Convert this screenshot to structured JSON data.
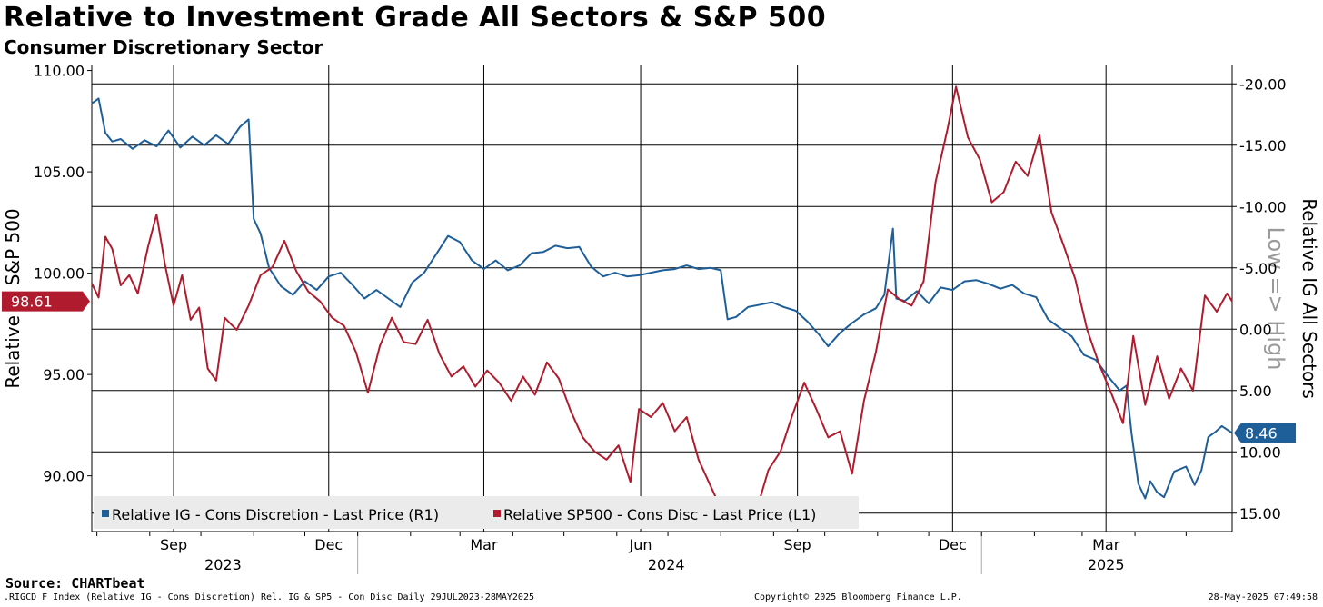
{
  "title": "Relative to Investment Grade All Sectors & S&P 500",
  "subtitle": "Consumer Discretionary Sector",
  "source": "Source: CHARTbeat",
  "footer": {
    "left": ".RIGCD F Index (Relative IG - Cons Discretion) Rel. IG & SP5 - Con Disc  Daily 29JUL2023-28MAY2025",
    "middle": "Copyright© 2025 Bloomberg Finance L.P.",
    "right": "28-May-2025 07:49:58"
  },
  "annotation": "Low => High",
  "chart_data": {
    "type": "line",
    "x_range": [
      "2023-07-29",
      "2025-05-28"
    ],
    "month_ticks": [
      "Sep",
      "Dec",
      "Mar",
      "Jun",
      "Sep",
      "Dec",
      "Mar"
    ],
    "month_tick_dates": [
      "2023-09-15",
      "2023-12-15",
      "2024-03-15",
      "2024-06-15",
      "2024-09-15",
      "2024-12-15",
      "2025-03-15"
    ],
    "year_ticks": [
      "2023",
      "2024",
      "2025"
    ],
    "year_tick_dates": [
      "2023-10-14",
      "2024-06-30",
      "2025-03-15"
    ],
    "left_axis": {
      "label": "Relative to S&P 500",
      "min": 87.25,
      "max": 110.25,
      "ticks": [
        110,
        105,
        100,
        95,
        90
      ],
      "tick_labels": [
        "110.00",
        "105.00",
        "100.00",
        "95.00",
        "90.00"
      ]
    },
    "right_axis": {
      "label": "Relative IG All Sectors",
      "inverted": true,
      "min": -21.5,
      "max": 16.5,
      "ticks": [
        -20,
        -15,
        -10,
        -5,
        0,
        5,
        10,
        15
      ],
      "tick_labels": [
        "-20.00",
        "-15.00",
        "-10.00",
        "-5.00",
        "0.00",
        "5.00",
        "10.00",
        "15.00"
      ]
    },
    "grid": true,
    "legend_position": "bottom-left",
    "series": [
      {
        "name": "Relative IG - Cons Discretion - Last Price (R1)",
        "axis": "right",
        "color": "#1f5f99",
        "last_value": "8.46",
        "points": [
          [
            "2023-07-29",
            -18.4
          ],
          [
            "2023-08-02",
            -18.8
          ],
          [
            "2023-08-06",
            -16.0
          ],
          [
            "2023-08-10",
            -15.3
          ],
          [
            "2023-08-15",
            -15.5
          ],
          [
            "2023-08-22",
            -14.7
          ],
          [
            "2023-08-29",
            -15.4
          ],
          [
            "2023-09-05",
            -14.9
          ],
          [
            "2023-09-12",
            -16.2
          ],
          [
            "2023-09-19",
            -14.8
          ],
          [
            "2023-09-26",
            -15.7
          ],
          [
            "2023-10-03",
            -15.0
          ],
          [
            "2023-10-10",
            -15.8
          ],
          [
            "2023-10-17",
            -15.1
          ],
          [
            "2023-10-24",
            -16.5
          ],
          [
            "2023-10-29",
            -17.1
          ],
          [
            "2023-11-01",
            -9.0
          ],
          [
            "2023-11-05",
            -7.8
          ],
          [
            "2023-11-10",
            -5.0
          ],
          [
            "2023-11-17",
            -3.5
          ],
          [
            "2023-11-24",
            -2.8
          ],
          [
            "2023-12-01",
            -3.9
          ],
          [
            "2023-12-08",
            -3.2
          ],
          [
            "2023-12-15",
            -4.3
          ],
          [
            "2023-12-22",
            -4.6
          ],
          [
            "2023-12-29",
            -3.6
          ],
          [
            "2024-01-05",
            -2.5
          ],
          [
            "2024-01-12",
            -3.2
          ],
          [
            "2024-01-19",
            -2.5
          ],
          [
            "2024-01-26",
            -1.8
          ],
          [
            "2024-02-02",
            -3.8
          ],
          [
            "2024-02-09",
            -4.6
          ],
          [
            "2024-02-16",
            -6.1
          ],
          [
            "2024-02-23",
            -7.6
          ],
          [
            "2024-03-01",
            -7.1
          ],
          [
            "2024-03-08",
            -5.6
          ],
          [
            "2024-03-15",
            -4.9
          ],
          [
            "2024-03-22",
            -5.6
          ],
          [
            "2024-03-29",
            -4.8
          ],
          [
            "2024-04-05",
            -5.2
          ],
          [
            "2024-04-12",
            -6.2
          ],
          [
            "2024-04-19",
            -6.3
          ],
          [
            "2024-04-26",
            -6.8
          ],
          [
            "2024-05-03",
            -6.6
          ],
          [
            "2024-05-10",
            -6.7
          ],
          [
            "2024-05-17",
            -5.1
          ],
          [
            "2024-05-24",
            -4.3
          ],
          [
            "2024-05-31",
            -4.6
          ],
          [
            "2024-06-07",
            -4.3
          ],
          [
            "2024-06-14",
            -4.4
          ],
          [
            "2024-06-21",
            -4.6
          ],
          [
            "2024-06-28",
            -4.8
          ],
          [
            "2024-07-05",
            -4.9
          ],
          [
            "2024-07-12",
            -5.2
          ],
          [
            "2024-07-19",
            -4.9
          ],
          [
            "2024-07-26",
            -5.0
          ],
          [
            "2024-08-01",
            -4.8
          ],
          [
            "2024-08-05",
            -0.8
          ],
          [
            "2024-08-10",
            -1.0
          ],
          [
            "2024-08-17",
            -1.8
          ],
          [
            "2024-08-24",
            -2.0
          ],
          [
            "2024-08-31",
            -2.2
          ],
          [
            "2024-09-07",
            -1.8
          ],
          [
            "2024-09-14",
            -1.5
          ],
          [
            "2024-09-21",
            -0.6
          ],
          [
            "2024-09-28",
            0.5
          ],
          [
            "2024-10-03",
            1.4
          ],
          [
            "2024-10-10",
            0.3
          ],
          [
            "2024-10-17",
            -0.5
          ],
          [
            "2024-10-24",
            -1.2
          ],
          [
            "2024-10-31",
            -1.7
          ],
          [
            "2024-11-05",
            -2.8
          ],
          [
            "2024-11-10",
            -8.2
          ],
          [
            "2024-11-12",
            -2.5
          ],
          [
            "2024-11-17",
            -2.3
          ],
          [
            "2024-11-24",
            -3.1
          ],
          [
            "2024-12-01",
            -2.1
          ],
          [
            "2024-12-08",
            -3.4
          ],
          [
            "2024-12-15",
            -3.2
          ],
          [
            "2024-12-22",
            -3.9
          ],
          [
            "2024-12-29",
            -4.0
          ],
          [
            "2025-01-05",
            -3.7
          ],
          [
            "2025-01-12",
            -3.3
          ],
          [
            "2025-01-19",
            -3.6
          ],
          [
            "2025-01-26",
            -2.9
          ],
          [
            "2025-02-02",
            -2.6
          ],
          [
            "2025-02-09",
            -0.8
          ],
          [
            "2025-02-16",
            -0.1
          ],
          [
            "2025-02-23",
            0.6
          ],
          [
            "2025-03-02",
            2.1
          ],
          [
            "2025-03-09",
            2.5
          ],
          [
            "2025-03-16",
            3.8
          ],
          [
            "2025-03-23",
            5.0
          ],
          [
            "2025-03-27",
            4.6
          ],
          [
            "2025-03-30",
            8.5
          ],
          [
            "2025-04-03",
            12.6
          ],
          [
            "2025-04-07",
            13.8
          ],
          [
            "2025-04-10",
            12.4
          ],
          [
            "2025-04-14",
            13.3
          ],
          [
            "2025-04-18",
            13.7
          ],
          [
            "2025-04-24",
            11.6
          ],
          [
            "2025-05-01",
            11.2
          ],
          [
            "2025-05-06",
            12.7
          ],
          [
            "2025-05-10",
            11.5
          ],
          [
            "2025-05-14",
            8.8
          ],
          [
            "2025-05-18",
            8.4
          ],
          [
            "2025-05-22",
            7.9
          ],
          [
            "2025-05-28",
            8.46
          ]
        ]
      },
      {
        "name": "Relative SP500 - Cons Disc - Last Price (L1)",
        "axis": "left",
        "color": "#b01c2e",
        "last_value": "98.61",
        "points": [
          [
            "2023-07-29",
            99.5
          ],
          [
            "2023-08-02",
            98.8
          ],
          [
            "2023-08-06",
            101.8
          ],
          [
            "2023-08-10",
            101.2
          ],
          [
            "2023-08-15",
            99.4
          ],
          [
            "2023-08-20",
            99.9
          ],
          [
            "2023-08-25",
            99.0
          ],
          [
            "2023-08-31",
            101.3
          ],
          [
            "2023-09-05",
            102.9
          ],
          [
            "2023-09-10",
            100.4
          ],
          [
            "2023-09-15",
            98.4
          ],
          [
            "2023-09-20",
            99.9
          ],
          [
            "2023-09-25",
            97.7
          ],
          [
            "2023-09-30",
            98.3
          ],
          [
            "2023-10-05",
            95.3
          ],
          [
            "2023-10-10",
            94.7
          ],
          [
            "2023-10-15",
            97.8
          ],
          [
            "2023-10-22",
            97.2
          ],
          [
            "2023-10-29",
            98.4
          ],
          [
            "2023-11-05",
            99.9
          ],
          [
            "2023-11-12",
            100.3
          ],
          [
            "2023-11-19",
            101.6
          ],
          [
            "2023-11-26",
            100.1
          ],
          [
            "2023-12-03",
            99.1
          ],
          [
            "2023-12-10",
            98.6
          ],
          [
            "2023-12-17",
            97.8
          ],
          [
            "2023-12-24",
            97.4
          ],
          [
            "2023-12-31",
            96.1
          ],
          [
            "2024-01-07",
            94.1
          ],
          [
            "2024-01-14",
            96.4
          ],
          [
            "2024-01-21",
            97.8
          ],
          [
            "2024-01-28",
            96.6
          ],
          [
            "2024-02-04",
            96.5
          ],
          [
            "2024-02-11",
            97.7
          ],
          [
            "2024-02-18",
            96.0
          ],
          [
            "2024-02-25",
            94.9
          ],
          [
            "2024-03-03",
            95.4
          ],
          [
            "2024-03-10",
            94.4
          ],
          [
            "2024-03-17",
            95.2
          ],
          [
            "2024-03-24",
            94.6
          ],
          [
            "2024-03-31",
            93.7
          ],
          [
            "2024-04-07",
            94.9
          ],
          [
            "2024-04-14",
            94.0
          ],
          [
            "2024-04-21",
            95.6
          ],
          [
            "2024-04-28",
            94.8
          ],
          [
            "2024-05-05",
            93.2
          ],
          [
            "2024-05-12",
            91.9
          ],
          [
            "2024-05-19",
            91.2
          ],
          [
            "2024-05-26",
            90.8
          ],
          [
            "2024-06-02",
            91.5
          ],
          [
            "2024-06-09",
            89.7
          ],
          [
            "2024-06-14",
            93.3
          ],
          [
            "2024-06-21",
            92.9
          ],
          [
            "2024-06-28",
            93.6
          ],
          [
            "2024-07-05",
            92.2
          ],
          [
            "2024-07-12",
            92.9
          ],
          [
            "2024-07-19",
            90.8
          ],
          [
            "2024-07-26",
            89.5
          ],
          [
            "2024-08-01",
            88.4
          ],
          [
            "2024-08-08",
            88.1
          ],
          [
            "2024-08-15",
            87.6
          ],
          [
            "2024-08-22",
            88.3
          ],
          [
            "2024-08-29",
            90.3
          ],
          [
            "2024-09-05",
            91.2
          ],
          [
            "2024-09-12",
            93.0
          ],
          [
            "2024-09-19",
            94.6
          ],
          [
            "2024-09-26",
            93.3
          ],
          [
            "2024-10-03",
            91.9
          ],
          [
            "2024-10-10",
            92.2
          ],
          [
            "2024-10-17",
            90.1
          ],
          [
            "2024-10-24",
            93.7
          ],
          [
            "2024-10-31",
            96.1
          ],
          [
            "2024-11-07",
            99.2
          ],
          [
            "2024-11-14",
            98.7
          ],
          [
            "2024-11-21",
            98.4
          ],
          [
            "2024-11-28",
            99.6
          ],
          [
            "2024-12-05",
            104.5
          ],
          [
            "2024-12-12",
            107.1
          ],
          [
            "2024-12-17",
            109.2
          ],
          [
            "2024-12-24",
            106.7
          ],
          [
            "2024-12-31",
            105.6
          ],
          [
            "2025-01-07",
            103.5
          ],
          [
            "2025-01-14",
            104.0
          ],
          [
            "2025-01-21",
            105.5
          ],
          [
            "2025-01-28",
            104.8
          ],
          [
            "2025-02-04",
            106.8
          ],
          [
            "2025-02-11",
            103.0
          ],
          [
            "2025-02-18",
            101.4
          ],
          [
            "2025-02-25",
            99.7
          ],
          [
            "2025-03-04",
            97.2
          ],
          [
            "2025-03-11",
            95.5
          ],
          [
            "2025-03-18",
            94.1
          ],
          [
            "2025-03-25",
            92.6
          ],
          [
            "2025-03-31",
            96.9
          ],
          [
            "2025-04-07",
            93.5
          ],
          [
            "2025-04-14",
            95.9
          ],
          [
            "2025-04-21",
            93.8
          ],
          [
            "2025-04-28",
            95.3
          ],
          [
            "2025-05-05",
            94.2
          ],
          [
            "2025-05-12",
            98.9
          ],
          [
            "2025-05-19",
            98.1
          ],
          [
            "2025-05-25",
            99.0
          ],
          [
            "2025-05-28",
            98.61
          ]
        ]
      }
    ]
  }
}
